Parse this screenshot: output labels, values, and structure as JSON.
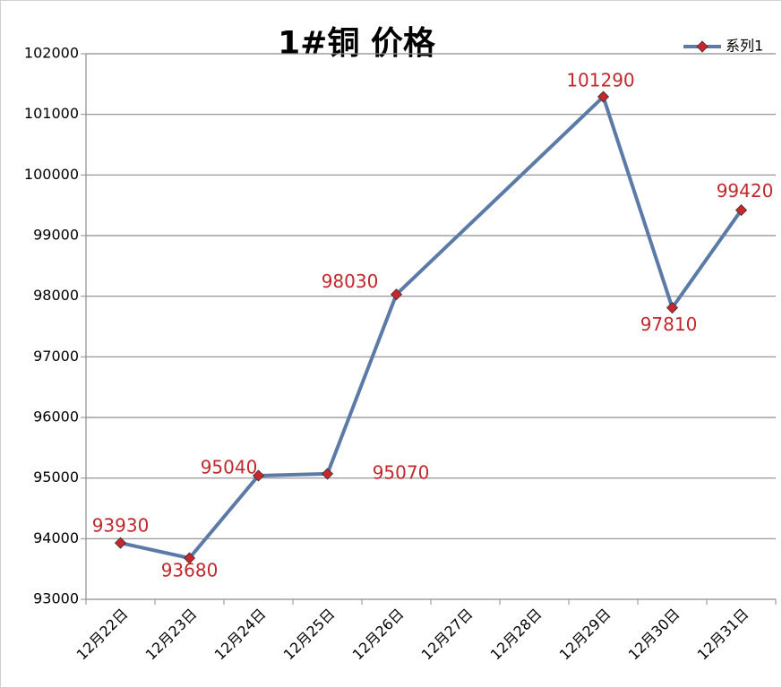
{
  "chart_data": {
    "type": "line",
    "title": "1#铜 价格",
    "categories": [
      "12月22日",
      "12月23日",
      "12月24日",
      "12月25日",
      "12月26日",
      "12月27日",
      "12月28日",
      "12月29日",
      "12月30日",
      "12月31日"
    ],
    "series": [
      {
        "name": "系列1",
        "color": "#5b7aa8",
        "marker_color": "#c8282d",
        "values": [
          93930,
          93680,
          95040,
          95070,
          98030,
          null,
          null,
          101290,
          97810,
          99420
        ]
      }
    ],
    "span_gaps": true,
    "ylim": [
      93000,
      102000
    ],
    "yticks": [
      93000,
      94000,
      95000,
      96000,
      97000,
      98000,
      99000,
      100000,
      101000,
      102000
    ],
    "grid": true,
    "legend": "top-right",
    "label_color": "#c0282d"
  }
}
